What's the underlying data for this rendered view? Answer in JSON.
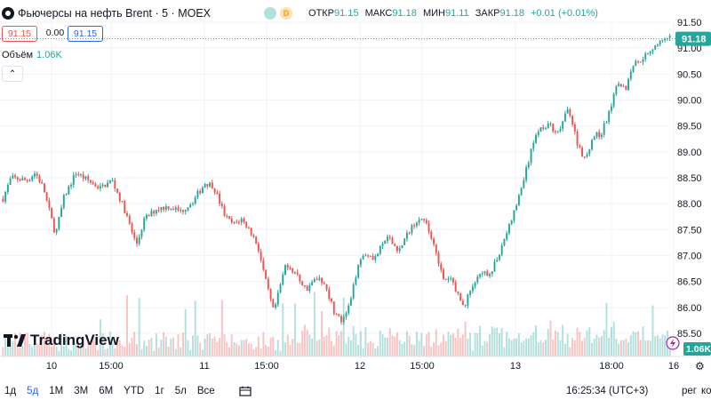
{
  "header": {
    "symbol": "Фьючерсы на нефть Brent · 5 · MOEX",
    "badge": "D",
    "ohlc": [
      {
        "label": "ОТКР",
        "value": "91.15"
      },
      {
        "label": "МАКС",
        "value": "91.18"
      },
      {
        "label": "МИН",
        "value": "91.11"
      },
      {
        "label": "ЗАКР",
        "value": "91.18"
      },
      {
        "label": "",
        "value": "+0.01 (+0.01%)"
      }
    ]
  },
  "quote": {
    "bid": "91.15",
    "spread": "0.00",
    "ask": "91.15"
  },
  "volume": {
    "label": "Объём",
    "value": "1.06K"
  },
  "collapse_glyph": "⌃",
  "logo_text": "TradingView",
  "bottom_bar": {
    "ranges": [
      "1д",
      "5д",
      "1M",
      "3M",
      "6M",
      "YTD",
      "1г",
      "5л",
      "Все"
    ],
    "active_range": "5д",
    "time": "16:25:34 (UTC+3)",
    "session": "рег",
    "adjust": "корр"
  },
  "colors": {
    "up": "#26a69a",
    "down": "#ef5350",
    "grid": "#f0f3fa",
    "accent": "#2962ff"
  },
  "chart_data": {
    "type": "candlestick",
    "y_ticks": [
      "91.50",
      "91.00",
      "90.50",
      "90.00",
      "89.50",
      "89.00",
      "88.50",
      "88.00",
      "87.50",
      "87.00",
      "86.50",
      "86.00",
      "85.50"
    ],
    "ylim": [
      85.5,
      91.5
    ],
    "x_ticks": [
      "10",
      "15:00",
      "11",
      "15:00",
      "12",
      "15:00",
      "13",
      "18:00",
      "16"
    ],
    "last_price": "91.18",
    "last_volume": "1.06K",
    "price_path": [
      [
        0,
        88.1
      ],
      [
        2,
        88.5
      ],
      [
        6,
        88.45
      ],
      [
        8,
        88.6
      ],
      [
        10,
        88.3
      ],
      [
        12,
        87.7
      ],
      [
        13,
        87.4
      ],
      [
        15,
        88.1
      ],
      [
        18,
        88.6
      ],
      [
        20,
        88.5
      ],
      [
        24,
        88.3
      ],
      [
        27,
        88.45
      ],
      [
        30,
        87.9
      ],
      [
        33,
        87.2
      ],
      [
        35,
        87.7
      ],
      [
        38,
        87.9
      ],
      [
        41,
        87.95
      ],
      [
        44,
        87.85
      ],
      [
        47,
        88.05
      ],
      [
        50,
        88.4
      ],
      [
        52,
        88.35
      ],
      [
        55,
        87.75
      ],
      [
        57,
        87.6
      ],
      [
        59,
        87.7
      ],
      [
        61,
        87.5
      ],
      [
        63,
        87.2
      ],
      [
        65,
        86.5
      ],
      [
        67,
        85.9
      ],
      [
        70,
        86.85
      ],
      [
        72,
        86.7
      ],
      [
        75,
        86.35
      ],
      [
        78,
        86.6
      ],
      [
        80,
        86.4
      ],
      [
        82,
        85.9
      ],
      [
        84,
        85.7
      ],
      [
        86,
        86.1
      ],
      [
        88,
        86.9
      ],
      [
        90,
        87.05
      ],
      [
        92,
        86.95
      ],
      [
        95,
        87.35
      ],
      [
        98,
        87.1
      ],
      [
        101,
        87.55
      ],
      [
        103,
        87.75
      ],
      [
        105,
        87.55
      ],
      [
        107,
        87.15
      ],
      [
        109,
        86.5
      ],
      [
        111,
        86.55
      ],
      [
        112,
        86.35
      ],
      [
        114,
        86.0
      ],
      [
        116,
        86.4
      ],
      [
        118,
        86.6
      ],
      [
        121,
        86.7
      ],
      [
        124,
        87.3
      ],
      [
        127,
        87.95
      ],
      [
        130,
        88.8
      ],
      [
        132,
        89.4
      ],
      [
        135,
        89.55
      ],
      [
        137,
        89.3
      ],
      [
        140,
        89.85
      ],
      [
        142,
        89.2
      ],
      [
        144,
        88.85
      ],
      [
        146,
        89.3
      ],
      [
        148,
        89.35
      ],
      [
        150,
        89.75
      ],
      [
        152,
        90.4
      ],
      [
        154,
        90.2
      ],
      [
        156,
        90.7
      ],
      [
        158,
        90.8
      ],
      [
        160,
        90.95
      ],
      [
        162,
        91.1
      ],
      [
        164,
        91.15
      ],
      [
        165,
        91.18
      ]
    ]
  }
}
